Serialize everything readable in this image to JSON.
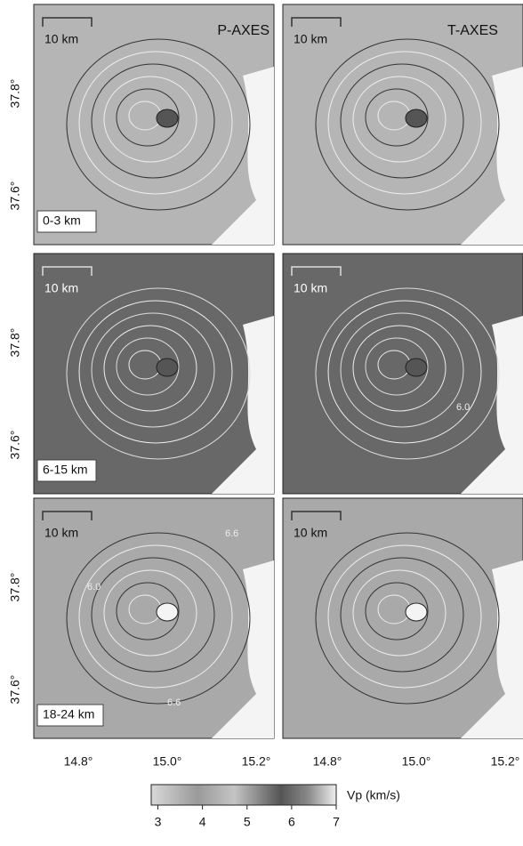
{
  "panels": {
    "columns": [
      {
        "title": "P-AXES"
      },
      {
        "title": "T-AXES"
      }
    ],
    "rows": [
      {
        "depth": "0-3 km"
      },
      {
        "depth": "6-15 km"
      },
      {
        "depth": "18-24 km"
      }
    ],
    "scale_label": "10 km",
    "latitude_labels": [
      "37.8°",
      "37.6°"
    ],
    "longitude_labels": [
      "14.8°",
      "15.0°",
      "15.2°"
    ],
    "contour_labels": [
      "6.0",
      "6.0",
      "6.6",
      "6.6"
    ]
  },
  "colorbar": {
    "label": "Vp (km/s)",
    "lim": [
      2.85,
      7.0
    ],
    "ticks": [
      3,
      4,
      5,
      6,
      7
    ]
  }
}
